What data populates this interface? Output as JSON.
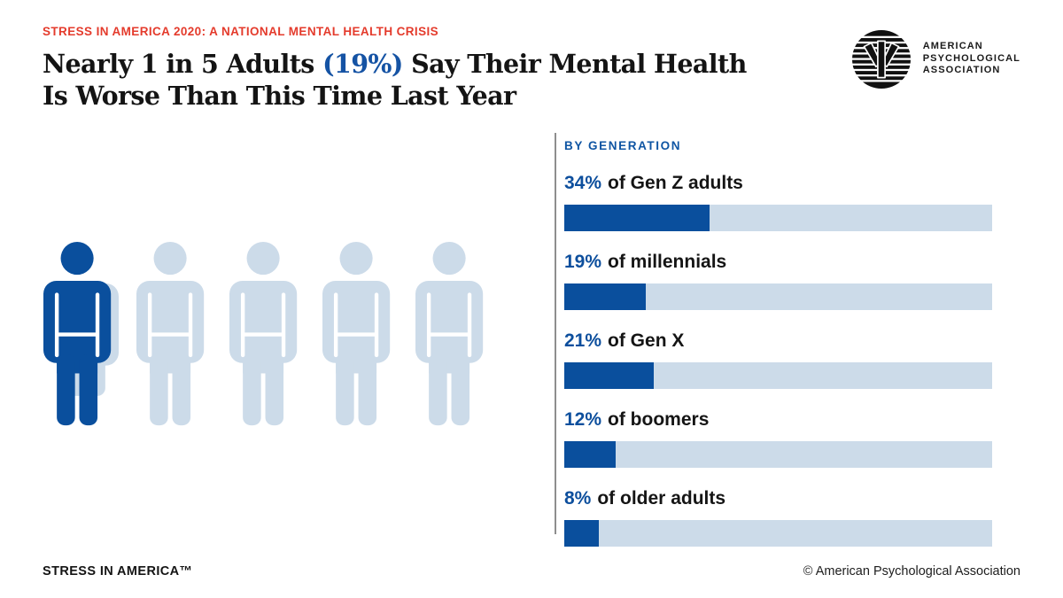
{
  "header": {
    "kicker": "STRESS IN AMERICA 2020: A NATIONAL MENTAL HEALTH CRISIS",
    "headline": {
      "line1_pre": "Nearly 1 in 5 Adults ",
      "line1_highlight": "(19%)",
      "line1_post": " Say Their Mental Health",
      "line2": "Is Worse Than This Time Last Year"
    }
  },
  "logo": {
    "line1": "AMERICAN",
    "line2": "PSYCHOLOGICAL",
    "line3": "ASSOCIATION"
  },
  "chart": {
    "section_title": "BY GENERATION",
    "rows": [
      {
        "pct": "34%",
        "rest": "of Gen Z adults",
        "value": 34
      },
      {
        "pct": "19%",
        "rest": "of millennials",
        "value": 19
      },
      {
        "pct": "21%",
        "rest": "of Gen X",
        "value": 21
      },
      {
        "pct": "12%",
        "rest": "of boomers",
        "value": 12
      },
      {
        "pct": "8%",
        "rest": "of older adults",
        "value": 8
      }
    ]
  },
  "chart_data": {
    "type": "bar",
    "orientation": "horizontal",
    "title": "BY GENERATION",
    "categories": [
      "Gen Z adults",
      "millennials",
      "Gen X",
      "boomers",
      "older adults"
    ],
    "values": [
      34,
      19,
      21,
      12,
      8
    ],
    "unit": "%",
    "xlim": [
      0,
      100
    ],
    "grid": false,
    "legend": false,
    "bar_color": "#0a4f9d",
    "track_color": "#ccdbe9",
    "pictogram": {
      "type": "icon-array",
      "icon": "person",
      "total": 5,
      "highlighted": 1,
      "meaning": "Nearly 1 in 5 adults (19%) say their mental health is worse than this time last year"
    }
  },
  "colors": {
    "brand_blue": "#0a4f9d",
    "light_blue": "#ccdbe9",
    "accent_red": "#e43b2c",
    "text_black": "#151515",
    "divider_gray": "#8e8e8e"
  },
  "footer": {
    "brand": "STRESS IN AMERICA™",
    "copyright": "© American Psychological Association"
  }
}
